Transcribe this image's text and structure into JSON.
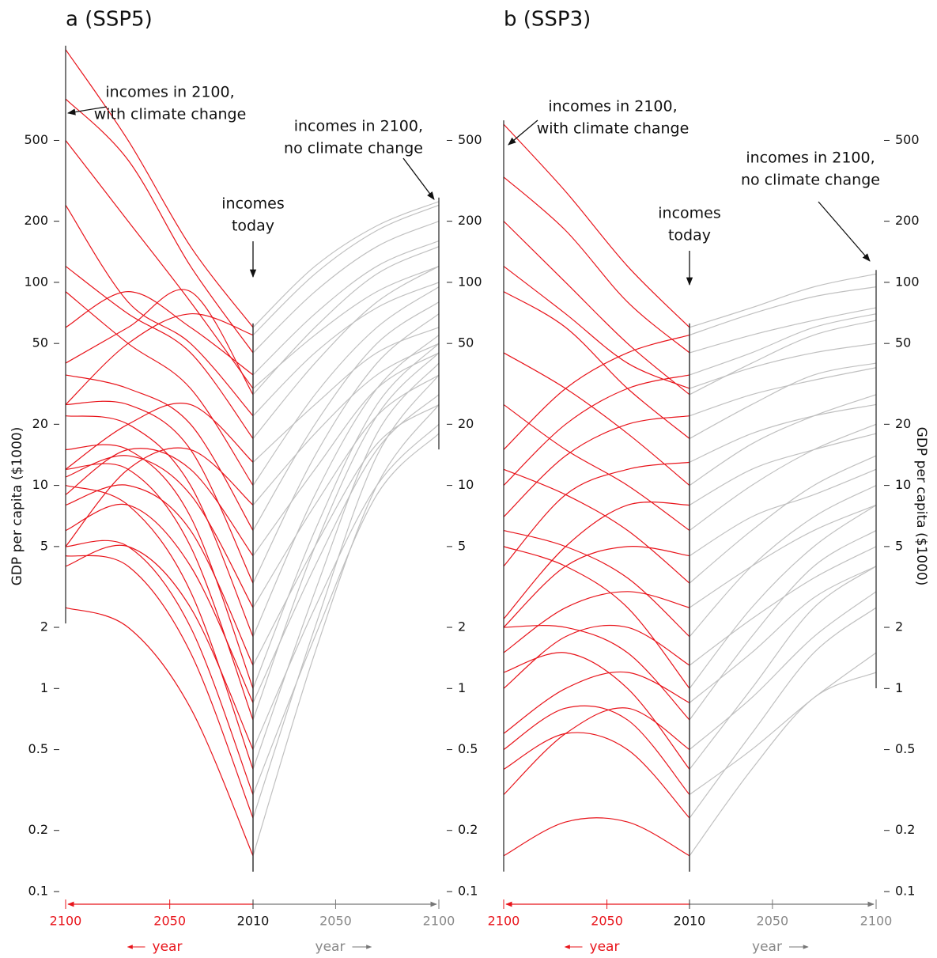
{
  "chart_data": [
    {
      "type": "line",
      "title": "a (SSP5)",
      "ylabel": "GDP per capita ($1000)",
      "xlabel": "year",
      "log_y": true,
      "color": "#e8141b",
      "x": [
        2010,
        2040,
        2070,
        2100
      ],
      "xlim": [
        2100,
        2010
      ],
      "xticks": [
        2100,
        2050,
        2010
      ],
      "ylim": [
        0.1,
        1500
      ],
      "yticks": [
        0.1,
        0.2,
        0.5,
        1,
        2,
        5,
        10,
        20,
        50,
        100,
        200,
        500
      ],
      "annotations": [
        [
          "incomes in 2100,",
          "with climate change"
        ],
        [
          "incomes",
          "today"
        ]
      ],
      "series": [
        {
          "values": [
            0.15,
            0.8,
            2,
            2.5
          ]
        },
        {
          "values": [
            0.23,
            1.5,
            4,
            4.5
          ]
        },
        {
          "values": [
            0.3,
            2,
            5,
            5
          ]
        },
        {
          "values": [
            0.4,
            3,
            8,
            10
          ]
        },
        {
          "values": [
            0.5,
            2.5,
            5,
            4
          ]
        },
        {
          "values": [
            0.7,
            5,
            12,
            12
          ]
        },
        {
          "values": [
            0.85,
            4,
            8,
            6
          ]
        },
        {
          "values": [
            1,
            7,
            15,
            15
          ]
        },
        {
          "values": [
            1.3,
            6,
            10,
            8
          ]
        },
        {
          "values": [
            1.8,
            10,
            20,
            22
          ]
        },
        {
          "values": [
            2.5,
            9,
            14,
            11
          ]
        },
        {
          "values": [
            3.3,
            15,
            25,
            25
          ]
        },
        {
          "values": [
            4.5,
            12,
            15,
            9
          ]
        },
        {
          "values": [
            6,
            20,
            30,
            35
          ]
        },
        {
          "values": [
            8,
            15,
            12,
            5
          ]
        },
        {
          "values": [
            10,
            30,
            50,
            90
          ]
        },
        {
          "values": [
            13,
            25,
            20,
            12
          ]
        },
        {
          "values": [
            17,
            45,
            70,
            120
          ]
        },
        {
          "values": [
            22,
            50,
            80,
            240
          ]
        },
        {
          "values": [
            28,
            90,
            60,
            40
          ]
        },
        {
          "values": [
            30,
            80,
            200,
            500
          ]
        },
        {
          "values": [
            35,
            60,
            90,
            60
          ]
        },
        {
          "values": [
            45,
            120,
            400,
            800
          ]
        },
        {
          "values": [
            55,
            70,
            50,
            25
          ]
        },
        {
          "values": [
            60,
            150,
            500,
            1400
          ]
        }
      ]
    },
    {
      "type": "line",
      "xlabel": "year",
      "log_y": true,
      "color": "#c0c0c0",
      "x": [
        2010,
        2040,
        2070,
        2100
      ],
      "xlim": [
        2010,
        2100
      ],
      "xticks": [
        2050,
        2100
      ],
      "ylim": [
        0.1,
        1500
      ],
      "yticks": [
        0.1,
        0.2,
        0.5,
        1,
        2,
        5,
        10,
        20,
        50,
        100,
        200,
        500
      ],
      "annotations": [
        [
          "incomes in 2100,",
          "no climate change"
        ]
      ],
      "series": [
        {
          "values": [
            0.15,
            1.5,
            10,
            25
          ]
        },
        {
          "values": [
            0.23,
            2,
            14,
            35
          ]
        },
        {
          "values": [
            0.3,
            1.8,
            9,
            18
          ]
        },
        {
          "values": [
            0.4,
            3,
            18,
            40
          ]
        },
        {
          "values": [
            0.5,
            2.5,
            10,
            20
          ]
        },
        {
          "values": [
            0.7,
            5,
            22,
            45
          ]
        },
        {
          "values": [
            0.85,
            4,
            15,
            28
          ]
        },
        {
          "values": [
            1,
            6,
            25,
            50
          ]
        },
        {
          "values": [
            1.3,
            5,
            16,
            25
          ]
        },
        {
          "values": [
            1.8,
            9,
            30,
            55
          ]
        },
        {
          "values": [
            2.5,
            8,
            22,
            35
          ]
        },
        {
          "values": [
            3.3,
            14,
            40,
            70
          ]
        },
        {
          "values": [
            4.5,
            12,
            30,
            45
          ]
        },
        {
          "values": [
            6,
            20,
            50,
            80
          ]
        },
        {
          "values": [
            8,
            18,
            35,
            50
          ]
        },
        {
          "values": [
            10,
            28,
            60,
            95
          ]
        },
        {
          "values": [
            13,
            25,
            45,
            60
          ]
        },
        {
          "values": [
            17,
            40,
            80,
            120
          ]
        },
        {
          "values": [
            22,
            45,
            75,
            100
          ]
        },
        {
          "values": [
            28,
            60,
            110,
            150
          ]
        },
        {
          "values": [
            30,
            55,
            90,
            120
          ]
        },
        {
          "values": [
            35,
            70,
            120,
            160
          ]
        },
        {
          "values": [
            45,
            90,
            150,
            200
          ]
        },
        {
          "values": [
            55,
            110,
            180,
            240
          ]
        },
        {
          "values": [
            60,
            120,
            190,
            250
          ]
        }
      ]
    },
    {
      "type": "line",
      "title": "b (SSP3)",
      "xlabel": "year",
      "log_y": true,
      "color": "#e8141b",
      "x": [
        2010,
        2040,
        2070,
        2100
      ],
      "xlim": [
        2100,
        2010
      ],
      "xticks": [
        2100,
        2050,
        2010
      ],
      "ylim": [
        0.1,
        1500
      ],
      "annotations": [
        [
          "incomes in 2100,",
          "with climate change"
        ],
        [
          "incomes",
          "today"
        ]
      ],
      "series": [
        {
          "values": [
            0.15,
            0.22,
            0.22,
            0.15
          ]
        },
        {
          "values": [
            0.23,
            0.5,
            0.6,
            0.4
          ]
        },
        {
          "values": [
            0.3,
            0.7,
            0.8,
            0.5
          ]
        },
        {
          "values": [
            0.4,
            1,
            1.5,
            1.2
          ]
        },
        {
          "values": [
            0.5,
            0.8,
            0.6,
            0.3
          ]
        },
        {
          "values": [
            0.7,
            1.5,
            2,
            2
          ]
        },
        {
          "values": [
            0.85,
            1.2,
            1,
            0.6
          ]
        },
        {
          "values": [
            1,
            2.5,
            4,
            5
          ]
        },
        {
          "values": [
            1.3,
            2,
            1.8,
            1
          ]
        },
        {
          "values": [
            1.8,
            3.5,
            5,
            6
          ]
        },
        {
          "values": [
            2.5,
            3,
            2.5,
            1.5
          ]
        },
        {
          "values": [
            3.3,
            6,
            9,
            12
          ]
        },
        {
          "values": [
            4.5,
            5,
            4,
            2
          ]
        },
        {
          "values": [
            6,
            10,
            15,
            25
          ]
        },
        {
          "values": [
            8,
            8,
            5,
            2.2
          ]
        },
        {
          "values": [
            10,
            18,
            30,
            45
          ]
        },
        {
          "values": [
            13,
            12,
            9,
            4
          ]
        },
        {
          "values": [
            17,
            30,
            60,
            90
          ]
        },
        {
          "values": [
            22,
            20,
            14,
            7
          ]
        },
        {
          "values": [
            28,
            50,
            100,
            200
          ]
        },
        {
          "values": [
            30,
            40,
            70,
            120
          ]
        },
        {
          "values": [
            35,
            30,
            20,
            10
          ]
        },
        {
          "values": [
            45,
            80,
            180,
            330
          ]
        },
        {
          "values": [
            55,
            45,
            30,
            15
          ]
        },
        {
          "values": [
            60,
            120,
            280,
            600
          ]
        }
      ]
    },
    {
      "type": "line",
      "ylabel": "GDP per capita ($1000)",
      "xlabel": "year",
      "log_y": true,
      "color": "#c0c0c0",
      "x": [
        2010,
        2040,
        2070,
        2100
      ],
      "xlim": [
        2010,
        2100
      ],
      "xticks": [
        2050,
        2100
      ],
      "ylim": [
        0.1,
        1500
      ],
      "yticks": [
        0.1,
        0.2,
        0.5,
        1,
        2,
        5,
        10,
        20,
        50,
        100,
        200,
        500
      ],
      "annotations": [
        [
          "incomes in 2100,",
          "no climate change"
        ]
      ],
      "series": [
        {
          "values": [
            0.15,
            0.4,
            0.9,
            1.2
          ]
        },
        {
          "values": [
            0.23,
            0.6,
            1.5,
            2.5
          ]
        },
        {
          "values": [
            0.3,
            0.5,
            0.9,
            1.5
          ]
        },
        {
          "values": [
            0.4,
            1,
            2.5,
            4
          ]
        },
        {
          "values": [
            0.5,
            0.9,
            1.8,
            3
          ]
        },
        {
          "values": [
            0.7,
            1.8,
            4,
            6
          ]
        },
        {
          "values": [
            0.85,
            1.5,
            2.8,
            4
          ]
        },
        {
          "values": [
            1,
            2.5,
            5,
            8
          ]
        },
        {
          "values": [
            1.3,
            2.2,
            3.5,
            5
          ]
        },
        {
          "values": [
            1.8,
            4,
            7,
            10
          ]
        },
        {
          "values": [
            2.5,
            4,
            6,
            8
          ]
        },
        {
          "values": [
            3.3,
            6,
            10,
            14
          ]
        },
        {
          "values": [
            4.5,
            7,
            9,
            12
          ]
        },
        {
          "values": [
            6,
            10,
            15,
            20
          ]
        },
        {
          "values": [
            8,
            12,
            15,
            18
          ]
        },
        {
          "values": [
            10,
            16,
            22,
            28
          ]
        },
        {
          "values": [
            13,
            18,
            22,
            25
          ]
        },
        {
          "values": [
            17,
            25,
            35,
            40
          ]
        },
        {
          "values": [
            22,
            28,
            33,
            38
          ]
        },
        {
          "values": [
            28,
            40,
            55,
            65
          ]
        },
        {
          "values": [
            30,
            38,
            45,
            50
          ]
        },
        {
          "values": [
            35,
            45,
            60,
            70
          ]
        },
        {
          "values": [
            45,
            55,
            65,
            75
          ]
        },
        {
          "values": [
            55,
            70,
            85,
            95
          ]
        },
        {
          "values": [
            60,
            75,
            95,
            110
          ]
        }
      ]
    }
  ]
}
